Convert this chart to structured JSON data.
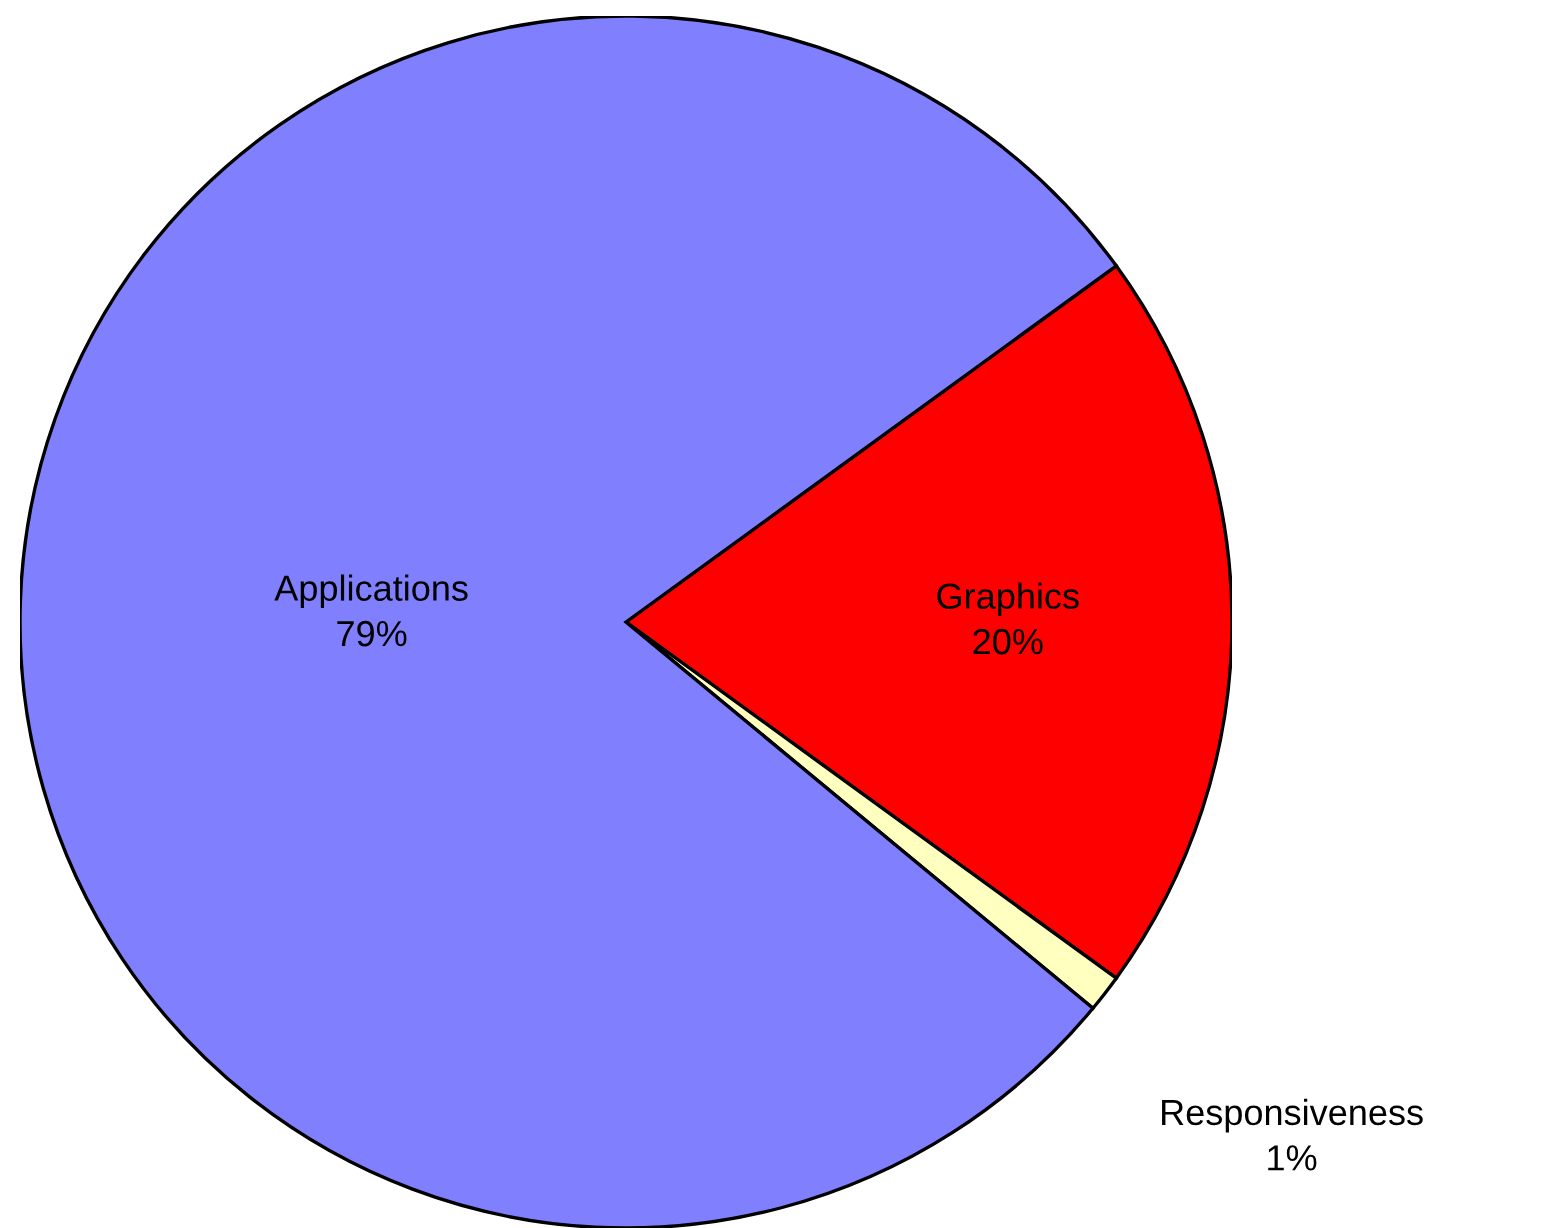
{
  "chart_data": {
    "type": "pie",
    "categories": [
      "Graphics",
      "Responsiveness",
      "Applications"
    ],
    "values": [
      20,
      1,
      79
    ],
    "colors": [
      "#ff0000",
      "#ffffc0",
      "#8080ff"
    ],
    "value_labels": [
      "20%",
      "1%",
      "79%"
    ]
  }
}
